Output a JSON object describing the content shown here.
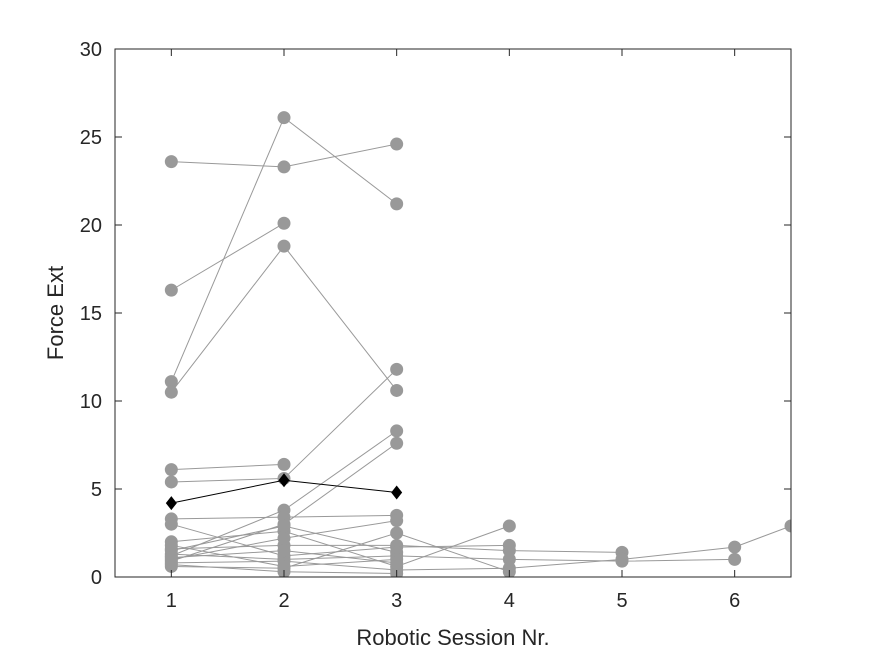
{
  "chart_data": {
    "type": "line",
    "title": "",
    "xlabel": "Robotic Session Nr.",
    "ylabel": "Force Ext",
    "xlim": [
      0.5,
      6.5
    ],
    "ylim": [
      0,
      30
    ],
    "x_ticks": [
      1,
      2,
      3,
      4,
      5,
      6
    ],
    "y_ticks": [
      0,
      5,
      10,
      15,
      20,
      25,
      30
    ],
    "grid": false,
    "legend": "none",
    "colors": {
      "series": "#999999",
      "highlight": "#000000",
      "axis": "#262626"
    },
    "series": [
      {
        "x": [
          1,
          2,
          3
        ],
        "y": [
          23.6,
          23.3,
          24.6
        ]
      },
      {
        "x": [
          1,
          2,
          3
        ],
        "y": [
          11.1,
          26.1,
          21.2
        ]
      },
      {
        "x": [
          1,
          2
        ],
        "y": [
          16.3,
          20.1
        ]
      },
      {
        "x": [
          1,
          2,
          3
        ],
        "y": [
          10.5,
          18.8,
          10.6
        ]
      },
      {
        "x": [
          1,
          2
        ],
        "y": [
          6.1,
          6.4
        ]
      },
      {
        "x": [
          1,
          2,
          3
        ],
        "y": [
          5.4,
          5.6,
          11.8
        ]
      },
      {
        "x": [
          1,
          2,
          3
        ],
        "y": [
          1.2,
          3.8,
          8.3
        ]
      },
      {
        "x": [
          1,
          2,
          3
        ],
        "y": [
          0.9,
          3.0,
          7.6
        ]
      },
      {
        "x": [
          1,
          2,
          3
        ],
        "y": [
          3.3,
          3.4,
          3.5
        ]
      },
      {
        "x": [
          1,
          2,
          3,
          4
        ],
        "y": [
          3.0,
          1.2,
          1.7,
          1.8
        ]
      },
      {
        "x": [
          1,
          2,
          3,
          4
        ],
        "y": [
          2.0,
          2.6,
          0.6,
          2.9
        ]
      },
      {
        "x": [
          1,
          2,
          3,
          4,
          5
        ],
        "y": [
          1.6,
          1.8,
          1.8,
          1.5,
          1.4
        ]
      },
      {
        "x": [
          1,
          2,
          3,
          4,
          5,
          6
        ],
        "y": [
          1.3,
          1.0,
          1.2,
          1.0,
          0.9,
          1.0
        ]
      },
      {
        "x": [
          1,
          2,
          3,
          4,
          5,
          6,
          6.5
        ],
        "y": [
          0.8,
          0.9,
          0.4,
          0.5,
          1.0,
          1.7,
          2.9
        ]
      },
      {
        "x": [
          1,
          2,
          3,
          4
        ],
        "y": [
          0.6,
          0.5,
          2.5,
          0.3
        ]
      },
      {
        "x": [
          1,
          2,
          3
        ],
        "y": [
          1.0,
          2.2,
          3.2
        ]
      },
      {
        "x": [
          1,
          2,
          3
        ],
        "y": [
          0.7,
          0.3,
          0.2
        ]
      },
      {
        "x": [
          1,
          2,
          3
        ],
        "y": [
          1.5,
          2.9,
          1.4
        ]
      },
      {
        "x": [
          1,
          2,
          3
        ],
        "y": [
          1.8,
          0.6,
          1.0
        ]
      },
      {
        "x": [
          1,
          2,
          3
        ],
        "y": [
          1.1,
          1.5,
          0.8
        ]
      }
    ],
    "highlight_series": {
      "x": [
        1,
        2,
        3
      ],
      "y": [
        4.2,
        5.5,
        4.8
      ],
      "marker": "diamond"
    }
  }
}
